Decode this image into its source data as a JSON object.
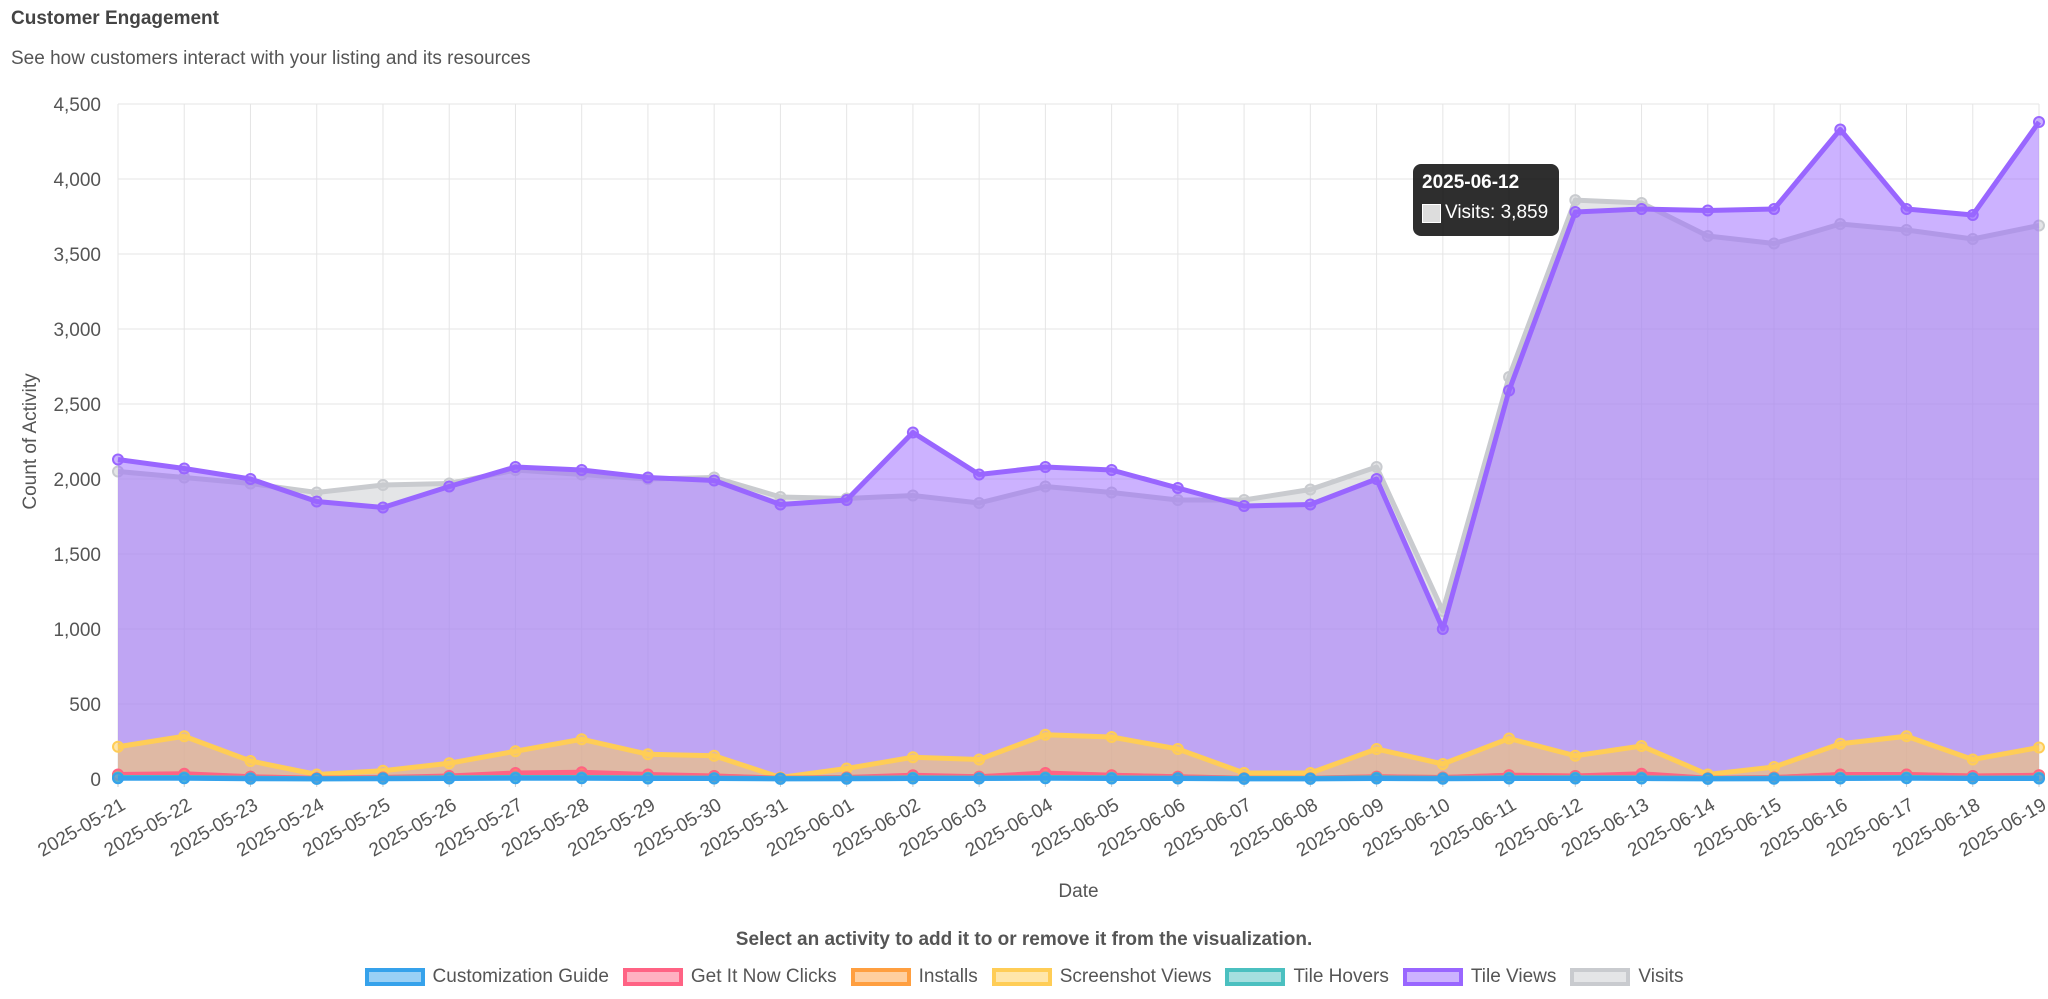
{
  "header": {
    "title": "Customer Engagement",
    "subtitle": "See how customers interact with your listing and its resources"
  },
  "chart_data": {
    "type": "area",
    "xlabel": "Date",
    "ylabel": "Count of Activity",
    "ylim": [
      0,
      4500
    ],
    "yticks": [
      0,
      500,
      1000,
      1500,
      2000,
      2500,
      3000,
      3500,
      4000,
      4500
    ],
    "ytick_labels": [
      "0",
      "500",
      "1,000",
      "1,500",
      "2,000",
      "2,500",
      "3,000",
      "3,500",
      "4,000",
      "4,500"
    ],
    "grid": true,
    "categories": [
      "2025-05-21",
      "2025-05-22",
      "2025-05-23",
      "2025-05-24",
      "2025-05-25",
      "2025-05-26",
      "2025-05-27",
      "2025-05-28",
      "2025-05-29",
      "2025-05-30",
      "2025-05-31",
      "2025-06-01",
      "2025-06-02",
      "2025-06-03",
      "2025-06-04",
      "2025-06-05",
      "2025-06-06",
      "2025-06-07",
      "2025-06-08",
      "2025-06-09",
      "2025-06-10",
      "2025-06-11",
      "2025-06-12",
      "2025-06-13",
      "2025-06-14",
      "2025-06-15",
      "2025-06-16",
      "2025-06-17",
      "2025-06-18",
      "2025-06-19"
    ],
    "series": [
      {
        "name": "Visits",
        "color": "#c9cbcf",
        "fill": "rgba(201,203,207,0.5)",
        "values": [
          2050,
          2010,
          1970,
          1910,
          1960,
          1970,
          2060,
          2030,
          2000,
          2010,
          1880,
          1870,
          1890,
          1840,
          1950,
          1910,
          1860,
          1860,
          1930,
          2080,
          1120,
          2680,
          3859,
          3840,
          3620,
          3570,
          3700,
          3660,
          3600,
          3690
        ]
      },
      {
        "name": "Tile Views",
        "color": "#9966ff",
        "fill": "rgba(153,102,255,0.5)",
        "values": [
          2130,
          2070,
          2000,
          1850,
          1810,
          1950,
          2080,
          2060,
          2010,
          1990,
          1830,
          1860,
          2310,
          2030,
          2080,
          2060,
          1940,
          1820,
          1830,
          2000,
          1000,
          2590,
          3780,
          3800,
          3790,
          3800,
          4330,
          3800,
          3760,
          4380
        ]
      },
      {
        "name": "Screenshot Views",
        "color": "#ffcd56",
        "fill": "rgba(255,205,86,0.5)",
        "values": [
          215,
          285,
          120,
          30,
          55,
          105,
          185,
          265,
          165,
          155,
          10,
          70,
          145,
          130,
          295,
          280,
          200,
          40,
          40,
          200,
          100,
          270,
          155,
          220,
          30,
          80,
          235,
          285,
          130,
          210
        ]
      },
      {
        "name": "Installs",
        "color": "#ff9f40",
        "fill": "rgba(255,159,64,0.5)",
        "values": [
          25,
          30,
          15,
          5,
          10,
          15,
          30,
          40,
          25,
          20,
          5,
          10,
          20,
          15,
          35,
          25,
          15,
          5,
          5,
          15,
          10,
          25,
          20,
          30,
          5,
          10,
          30,
          30,
          20,
          25
        ]
      },
      {
        "name": "Get It Now Clicks",
        "color": "#ff6384",
        "fill": "rgba(255,99,132,0.5)",
        "values": [
          30,
          35,
          15,
          5,
          10,
          20,
          40,
          45,
          30,
          20,
          5,
          10,
          25,
          15,
          40,
          25,
          15,
          5,
          5,
          15,
          10,
          25,
          20,
          35,
          5,
          10,
          30,
          30,
          20,
          25
        ]
      },
      {
        "name": "Tile Hovers",
        "color": "#4bc0c0",
        "fill": "rgba(75,192,192,0.5)",
        "values": [
          10,
          10,
          5,
          2,
          5,
          8,
          10,
          10,
          8,
          6,
          3,
          5,
          8,
          6,
          10,
          8,
          6,
          3,
          3,
          8,
          5,
          8,
          8,
          8,
          3,
          5,
          8,
          10,
          6,
          8
        ]
      },
      {
        "name": "Customization Guide",
        "color": "#36a2eb",
        "fill": "rgba(54,162,235,0.5)",
        "values": [
          5,
          5,
          2,
          1,
          2,
          3,
          5,
          5,
          3,
          3,
          1,
          2,
          3,
          3,
          5,
          3,
          3,
          1,
          1,
          3,
          2,
          3,
          3,
          3,
          1,
          2,
          3,
          5,
          3,
          3
        ]
      }
    ],
    "legend_position": "bottom",
    "tooltip": {
      "date": "2025-06-12",
      "label": "Visits: 3,859"
    }
  },
  "legend": {
    "caption": "Select an activity to add it to or remove it from the visualization.",
    "items": [
      {
        "label": "Customization Guide",
        "color": "#36a2eb",
        "fill": "rgba(54,162,235,0.5)"
      },
      {
        "label": "Get It Now Clicks",
        "color": "#ff6384",
        "fill": "rgba(255,99,132,0.5)"
      },
      {
        "label": "Installs",
        "color": "#ff9f40",
        "fill": "rgba(255,159,64,0.5)"
      },
      {
        "label": "Screenshot Views",
        "color": "#ffcd56",
        "fill": "rgba(255,205,86,0.5)"
      },
      {
        "label": "Tile Hovers",
        "color": "#4bc0c0",
        "fill": "rgba(75,192,192,0.5)"
      },
      {
        "label": "Tile Views",
        "color": "#9966ff",
        "fill": "rgba(153,102,255,0.5)"
      },
      {
        "label": "Visits",
        "color": "#c9cbcf",
        "fill": "rgba(201,203,207,0.5)"
      }
    ]
  }
}
